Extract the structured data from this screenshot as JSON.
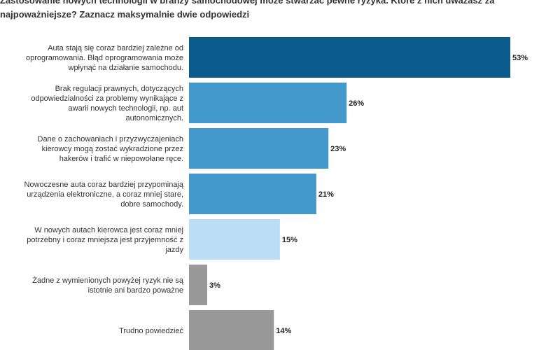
{
  "title_lines": [
    "Zastosowanie nowych technologii w branży samochodowej może stwarzać pewne ryzyka. Które z nich uważasz za",
    "najpoważniejsze? Zaznacz maksymalnie dwie odpowiedzi"
  ],
  "chart_data": {
    "type": "bar",
    "orientation": "horizontal",
    "title": "Zastosowanie nowych technologii w branży samochodowej może stwarzać pewne ryzyka. Które z nich uważasz za najpoważniejsze? Zaznacz maksymalnie dwie odpowiedzi",
    "unit": "%",
    "xlim": [
      0,
      60
    ],
    "grid": false,
    "categories": [
      [
        "Auta stają się coraz bardziej zależne od",
        "oprogramowania. Błąd oprogramowania może",
        "wpłynąć na działanie samochodu."
      ],
      [
        "Brak regulacji prawnych, dotyczących",
        "odpowiedzialności za problemy wynikające z",
        "awarii nowych technologii, np. aut",
        "autonomicznych."
      ],
      [
        "Dane o zachowaniach i przyzwyczajeniach",
        "kierowcy mogą zostać wykradzione przez",
        "hakerów i trafić w niepowołane ręce."
      ],
      [
        "Nowoczesne auta coraz bardziej przypominają",
        "urządzenia elektroniczne, a coraz mniej stare,",
        "dobre samochody."
      ],
      [
        "W nowych autach kierowca jest coraz mniej",
        "potrzebny i coraz mniejsza jest przyjemność z",
        "jazdy"
      ],
      [
        "Żadne z wymienionych powyżej ryzyk nie są",
        "istotnie ani bardzo poważne"
      ],
      [
        "Trudno powiedzieć"
      ]
    ],
    "values": [
      53,
      26,
      23,
      21,
      15,
      3,
      14
    ],
    "value_labels": [
      "53%",
      "26%",
      "23%",
      "21%",
      "15%",
      "3%",
      "14%"
    ],
    "colors": [
      "#0a5a8c",
      "#4499cc",
      "#4499cc",
      "#4499cc",
      "#bbdef5",
      "#999999",
      "#999999"
    ]
  }
}
